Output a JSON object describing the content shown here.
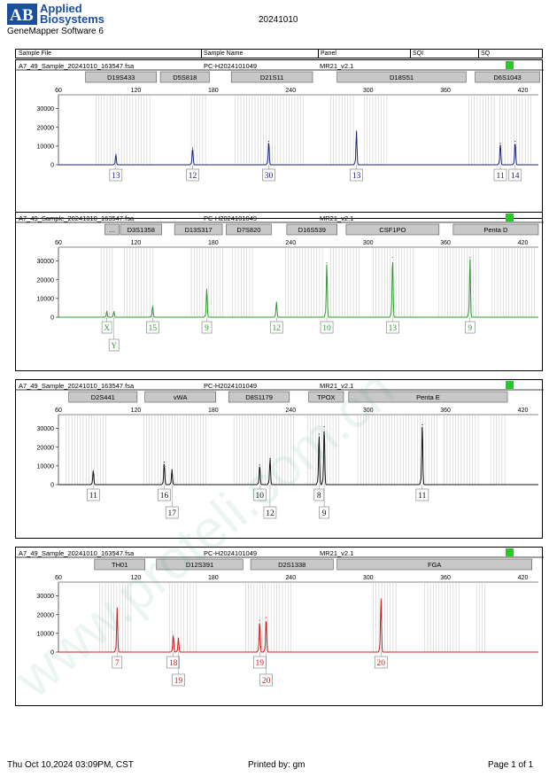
{
  "header": {
    "brand_line1": "Applied",
    "brand_line2": "Biosystems",
    "software": "GeneMapper Software 6",
    "date": "20241010",
    "columns": [
      "Sample File",
      "Sample Name",
      "Panel",
      "SQI",
      "SQ"
    ]
  },
  "footer": {
    "datetime": "Thu Oct 10,2024 03:09PM, CST",
    "printed_by": "Printed by: gm",
    "page": "Page 1 of 1"
  },
  "watermark": "www.proteli.com.cn",
  "chart_data": [
    {
      "type": "line",
      "sample_file": "A7_49_Sample_20241010_163547.fsa",
      "sample_name": "PC-H2024101049",
      "panel": "MR21_v2.1",
      "quality_color": "#22cc22",
      "trace_color": "#1a237e",
      "x_ticks": [
        60,
        120,
        180,
        240,
        300,
        360,
        420
      ],
      "y_ticks": [
        0,
        10000,
        20000,
        30000
      ],
      "xlim": [
        60,
        432
      ],
      "ylim": [
        0,
        36000
      ],
      "markers": [
        {
          "label": "D19S433",
          "start": 81,
          "end": 136
        },
        {
          "label": "D5S818",
          "start": 139,
          "end": 177
        },
        {
          "label": "D21S11",
          "start": 194,
          "end": 257
        },
        {
          "label": "D18S51",
          "start": 276,
          "end": 376
        },
        {
          "label": "D6S1043",
          "start": 383,
          "end": 433
        }
      ],
      "bins": [
        [
          89,
          131
        ],
        [
          163,
          176
        ],
        [
          197,
          250
        ],
        [
          271,
          290
        ],
        [
          297,
          316
        ],
        [
          378,
          398
        ],
        [
          402,
          427
        ]
      ],
      "peaks": [
        {
          "x": 104.5,
          "height": 5500
        },
        {
          "x": 164,
          "height": 9000
        },
        {
          "x": 223,
          "height": 12500
        },
        {
          "x": 291,
          "height": 18000
        },
        {
          "x": 402.5,
          "height": 11500
        },
        {
          "x": 414,
          "height": 12500
        }
      ],
      "alleles": [
        {
          "x": 104.5,
          "labels": [
            "13"
          ]
        },
        {
          "x": 164,
          "labels": [
            "12"
          ]
        },
        {
          "x": 223,
          "labels": [
            "30"
          ]
        },
        {
          "x": 291,
          "labels": [
            "13"
          ]
        },
        {
          "x": 402.5,
          "labels": [
            "11"
          ]
        },
        {
          "x": 414,
          "labels": [
            "14"
          ]
        }
      ]
    },
    {
      "type": "line",
      "sample_file": "A7_49_Sample_20241010_163547.fsa",
      "sample_name": "PC-H2024101049",
      "panel": "MR21_v2.1",
      "quality_color": "#22cc22",
      "trace_color": "#2e9a2e",
      "x_ticks": [
        60,
        120,
        180,
        240,
        300,
        360,
        420
      ],
      "y_ticks": [
        0,
        10000,
        20000,
        30000
      ],
      "xlim": [
        60,
        432
      ],
      "ylim": [
        0,
        36000
      ],
      "markers": [
        {
          "label": "…",
          "start": 96,
          "end": 107
        },
        {
          "label": "D3S1358",
          "start": 108,
          "end": 140
        },
        {
          "label": "D13S317",
          "start": 150,
          "end": 187
        },
        {
          "label": "D7S820",
          "start": 190,
          "end": 225
        },
        {
          "label": "D16S539",
          "start": 237,
          "end": 276
        },
        {
          "label": "CSF1PO",
          "start": 283,
          "end": 355
        },
        {
          "label": "Penta D",
          "start": 366,
          "end": 432
        }
      ],
      "bins": [
        [
          93,
          102
        ],
        [
          111,
          134
        ],
        [
          163,
          188
        ],
        [
          195,
          212
        ],
        [
          236,
          265
        ],
        [
          271,
          295
        ],
        [
          304,
          336
        ],
        [
          355,
          387
        ],
        [
          396,
          431
        ]
      ],
      "peaks": [
        {
          "x": 97.5,
          "height": 3000
        },
        {
          "x": 103,
          "height": 3000
        },
        {
          "x": 133,
          "height": 6000
        },
        {
          "x": 175,
          "height": 15000
        },
        {
          "x": 229,
          "height": 8000
        },
        {
          "x": 268,
          "height": 29000
        },
        {
          "x": 319,
          "height": 32000
        },
        {
          "x": 379,
          "height": 32000
        }
      ],
      "alleles": [
        {
          "x": 97.5,
          "labels": [
            "X"
          ]
        },
        {
          "x": 103,
          "labels": [
            "",
            "Y"
          ]
        },
        {
          "x": 133,
          "labels": [
            "15"
          ]
        },
        {
          "x": 175,
          "labels": [
            "9"
          ]
        },
        {
          "x": 229,
          "labels": [
            "12"
          ]
        },
        {
          "x": 268,
          "labels": [
            "10"
          ]
        },
        {
          "x": 319,
          "labels": [
            "13"
          ]
        },
        {
          "x": 379,
          "labels": [
            "9"
          ]
        }
      ]
    },
    {
      "type": "line",
      "sample_file": "A7_49_Sample_20241010_163547.fsa",
      "sample_name": "PC-H2024101049",
      "panel": "MR21_v2.1",
      "quality_color": "#22cc22",
      "trace_color": "#111111",
      "x_ticks": [
        60,
        120,
        180,
        240,
        300,
        360,
        420
      ],
      "y_ticks": [
        0,
        10000,
        20000,
        30000
      ],
      "xlim": [
        60,
        432
      ],
      "ylim": [
        0,
        36000
      ],
      "markers": [
        {
          "label": "D2S441",
          "start": 68,
          "end": 121
        },
        {
          "label": "vWA",
          "start": 127,
          "end": 182
        },
        {
          "label": "D8S1179",
          "start": 192,
          "end": 239
        },
        {
          "label": "TPOX",
          "start": 254,
          "end": 281
        },
        {
          "label": "Penta E",
          "start": 285,
          "end": 408
        }
      ],
      "bins": [
        [
          66,
          98
        ],
        [
          126,
          176
        ],
        [
          196,
          243
        ],
        [
          253,
          279
        ],
        [
          292,
          355
        ],
        [
          359,
          387
        ],
        [
          395,
          408
        ]
      ],
      "peaks": [
        {
          "x": 87,
          "height": 7500
        },
        {
          "x": 142,
          "height": 12000
        },
        {
          "x": 148,
          "height": 8000
        },
        {
          "x": 216,
          "height": 10500
        },
        {
          "x": 224,
          "height": 14000
        },
        {
          "x": 262,
          "height": 27000
        },
        {
          "x": 266,
          "height": 31000
        },
        {
          "x": 342,
          "height": 32000
        }
      ],
      "alleles": [
        {
          "x": 87,
          "labels": [
            "11"
          ]
        },
        {
          "x": 142,
          "labels": [
            "16"
          ]
        },
        {
          "x": 148,
          "labels": [
            "",
            "17"
          ]
        },
        {
          "x": 216,
          "labels": [
            "10"
          ]
        },
        {
          "x": 224,
          "labels": [
            "",
            "12"
          ]
        },
        {
          "x": 262,
          "labels": [
            "8"
          ]
        },
        {
          "x": 266,
          "labels": [
            "",
            "9"
          ]
        },
        {
          "x": 342,
          "labels": [
            "11"
          ]
        }
      ]
    },
    {
      "type": "line",
      "sample_file": "A7_49_Sample_20241010_163547.fsa",
      "sample_name": "PC-H2024101049",
      "panel": "MR21_v2.1",
      "quality_color": "#22cc22",
      "trace_color": "#cc1a1a",
      "x_ticks": [
        60,
        120,
        180,
        240,
        300,
        360,
        420
      ],
      "y_ticks": [
        0,
        10000,
        20000,
        30000
      ],
      "xlim": [
        60,
        432
      ],
      "ylim": [
        0,
        36000
      ],
      "markers": [
        {
          "label": "TH01",
          "start": 88,
          "end": 127
        },
        {
          "label": "D12S391",
          "start": 136,
          "end": 203
        },
        {
          "label": "D2S1338",
          "start": 209,
          "end": 273
        },
        {
          "label": "FGA",
          "start": 276,
          "end": 427
        }
      ],
      "bins": [
        [
          92,
          118
        ],
        [
          146,
          158
        ],
        [
          160,
          168
        ],
        [
          205,
          242
        ],
        [
          304,
          322
        ],
        [
          344,
          372
        ],
        [
          384,
          392
        ]
      ],
      "peaks": [
        {
          "x": 105.5,
          "height": 23500
        },
        {
          "x": 149,
          "height": 9000
        },
        {
          "x": 153,
          "height": 7500
        },
        {
          "x": 216,
          "height": 17000
        },
        {
          "x": 221,
          "height": 18500
        },
        {
          "x": 310,
          "height": 28500
        }
      ],
      "alleles": [
        {
          "x": 105.5,
          "labels": [
            "7"
          ]
        },
        {
          "x": 149,
          "labels": [
            "18"
          ]
        },
        {
          "x": 153,
          "labels": [
            "",
            "19"
          ]
        },
        {
          "x": 216,
          "labels": [
            "19"
          ]
        },
        {
          "x": 221,
          "labels": [
            "",
            "20"
          ]
        },
        {
          "x": 310,
          "labels": [
            "20"
          ]
        }
      ]
    }
  ]
}
